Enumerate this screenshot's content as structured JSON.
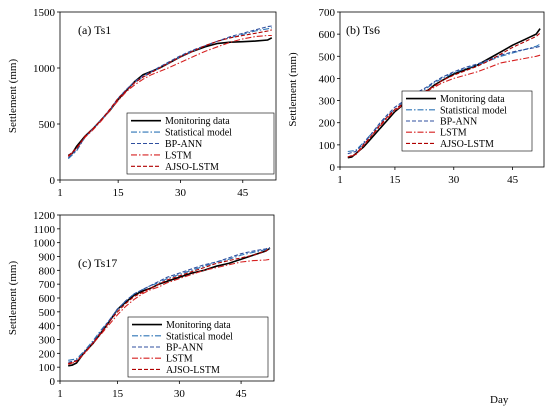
{
  "figure": {
    "xlabel": "Day"
  },
  "chart_data": [
    {
      "type": "line",
      "title": "(a) Ts1",
      "ylabel": "Settlement (mm)",
      "xlabel": "",
      "xlim": [
        1,
        53
      ],
      "ylim": [
        0,
        1500
      ],
      "xticks": [
        1,
        15,
        30,
        45
      ],
      "yticks": [
        0,
        500,
        1000,
        1500
      ],
      "legend_position": "bottom-right",
      "series": [
        {
          "name": "Monitoring data",
          "color": "#000000",
          "dash": "solid",
          "x": [
            3,
            4,
            5,
            7,
            9,
            11,
            13,
            15,
            17,
            19,
            21,
            23,
            25,
            27,
            30,
            33,
            36,
            39,
            42,
            45,
            48,
            51,
            52
          ],
          "y": [
            220,
            240,
            300,
            390,
            460,
            540,
            620,
            720,
            800,
            880,
            940,
            970,
            1000,
            1040,
            1100,
            1150,
            1190,
            1220,
            1230,
            1235,
            1240,
            1250,
            1270
          ]
        },
        {
          "name": "Statistical model",
          "color": "#2e75b6",
          "dash": "dashdot",
          "x": [
            3,
            5,
            7,
            9,
            11,
            13,
            15,
            17,
            19,
            21,
            23,
            25,
            27,
            30,
            33,
            36,
            39,
            42,
            45,
            48,
            51,
            52
          ],
          "y": [
            190,
            260,
            380,
            460,
            540,
            620,
            730,
            810,
            870,
            920,
            960,
            1000,
            1040,
            1100,
            1150,
            1200,
            1240,
            1270,
            1300,
            1330,
            1350,
            1360
          ]
        },
        {
          "name": "BP-ANN",
          "color": "#2f4f9f",
          "dash": "dashed",
          "x": [
            3,
            5,
            7,
            9,
            11,
            13,
            15,
            17,
            19,
            21,
            23,
            25,
            27,
            30,
            33,
            36,
            39,
            42,
            45,
            48,
            51,
            52
          ],
          "y": [
            200,
            270,
            380,
            460,
            540,
            630,
            730,
            810,
            880,
            930,
            970,
            1010,
            1050,
            1110,
            1160,
            1200,
            1240,
            1280,
            1310,
            1340,
            1370,
            1375
          ]
        },
        {
          "name": "LSTM",
          "color": "#d62020",
          "dash": "dashdot",
          "x": [
            3,
            5,
            7,
            9,
            11,
            13,
            15,
            17,
            19,
            21,
            23,
            25,
            27,
            30,
            33,
            36,
            39,
            42,
            45,
            48,
            51,
            52
          ],
          "y": [
            210,
            280,
            380,
            450,
            530,
            620,
            710,
            790,
            850,
            900,
            940,
            970,
            1000,
            1050,
            1100,
            1150,
            1190,
            1230,
            1260,
            1280,
            1290,
            1290
          ]
        },
        {
          "name": "AJSO-LSTM",
          "color": "#b00000",
          "dash": "dashed",
          "x": [
            3,
            5,
            7,
            9,
            11,
            13,
            15,
            17,
            19,
            21,
            23,
            25,
            27,
            30,
            33,
            36,
            39,
            42,
            45,
            48,
            51,
            52
          ],
          "y": [
            215,
            285,
            390,
            460,
            540,
            630,
            730,
            800,
            870,
            920,
            960,
            1000,
            1040,
            1100,
            1150,
            1200,
            1240,
            1270,
            1290,
            1310,
            1330,
            1340
          ]
        }
      ]
    },
    {
      "type": "line",
      "title": "(b) Ts6",
      "ylabel": "Settlement (mm)",
      "xlabel": "",
      "xlim": [
        1,
        53
      ],
      "ylim": [
        0,
        700
      ],
      "xticks": [
        1,
        15,
        30,
        45
      ],
      "yticks": [
        0,
        100,
        200,
        300,
        400,
        500,
        600,
        700
      ],
      "legend_position": "bottom-right",
      "series": [
        {
          "name": "Monitoring data",
          "color": "#000000",
          "dash": "solid",
          "x": [
            3,
            4,
            5,
            7,
            9,
            11,
            13,
            15,
            17,
            19,
            21,
            23,
            25,
            27,
            30,
            33,
            36,
            39,
            42,
            45,
            48,
            51,
            52
          ],
          "y": [
            42,
            45,
            60,
            90,
            130,
            170,
            210,
            250,
            280,
            300,
            320,
            340,
            370,
            390,
            420,
            440,
            460,
            490,
            520,
            550,
            575,
            600,
            625
          ]
        },
        {
          "name": "Statistical model",
          "color": "#2e75b6",
          "dash": "dashdot",
          "x": [
            3,
            5,
            7,
            9,
            11,
            13,
            15,
            17,
            19,
            21,
            23,
            25,
            27,
            30,
            33,
            36,
            39,
            42,
            45,
            48,
            51,
            52
          ],
          "y": [
            70,
            75,
            110,
            150,
            190,
            230,
            260,
            290,
            310,
            330,
            355,
            380,
            400,
            425,
            445,
            460,
            480,
            500,
            515,
            530,
            545,
            555
          ]
        },
        {
          "name": "BP-ANN",
          "color": "#2f4f9f",
          "dash": "dashed",
          "x": [
            3,
            5,
            7,
            9,
            11,
            13,
            15,
            17,
            19,
            21,
            23,
            25,
            27,
            30,
            33,
            36,
            39,
            42,
            45,
            48,
            51,
            52
          ],
          "y": [
            60,
            70,
            105,
            150,
            195,
            235,
            270,
            295,
            320,
            340,
            360,
            385,
            405,
            430,
            450,
            465,
            485,
            505,
            520,
            530,
            540,
            545
          ]
        },
        {
          "name": "LSTM",
          "color": "#d62020",
          "dash": "dashdot",
          "x": [
            3,
            5,
            7,
            9,
            11,
            13,
            15,
            17,
            19,
            21,
            23,
            25,
            27,
            30,
            33,
            36,
            39,
            42,
            45,
            48,
            51,
            52
          ],
          "y": [
            45,
            55,
            95,
            140,
            180,
            220,
            255,
            280,
            300,
            320,
            340,
            360,
            380,
            400,
            415,
            430,
            450,
            470,
            480,
            490,
            500,
            505
          ]
        },
        {
          "name": "AJSO-LSTM",
          "color": "#b00000",
          "dash": "dashed",
          "x": [
            3,
            5,
            7,
            9,
            11,
            13,
            15,
            17,
            19,
            21,
            23,
            25,
            27,
            30,
            33,
            36,
            39,
            42,
            45,
            48,
            51,
            52
          ],
          "y": [
            45,
            58,
            100,
            140,
            185,
            225,
            260,
            285,
            305,
            325,
            345,
            365,
            390,
            415,
            435,
            455,
            480,
            510,
            540,
            565,
            590,
            605
          ]
        }
      ]
    },
    {
      "type": "line",
      "title": "(c) Ts17",
      "ylabel": "Settlement (mm)",
      "xlabel": "",
      "xlim": [
        1,
        53
      ],
      "ylim": [
        0,
        1200
      ],
      "xticks": [
        1,
        15,
        30,
        45
      ],
      "yticks": [
        0,
        100,
        200,
        300,
        400,
        500,
        600,
        700,
        800,
        900,
        1000,
        1100,
        1200
      ],
      "legend_position": "bottom-right",
      "series": [
        {
          "name": "Monitoring data",
          "color": "#000000",
          "dash": "solid",
          "x": [
            3,
            4,
            5,
            6,
            7,
            9,
            11,
            13,
            15,
            17,
            19,
            21,
            23,
            25,
            27,
            30,
            33,
            36,
            39,
            42,
            45,
            48,
            51,
            52
          ],
          "y": [
            110,
            115,
            130,
            170,
            210,
            270,
            350,
            430,
            520,
            570,
            620,
            650,
            670,
            700,
            720,
            750,
            780,
            800,
            830,
            850,
            880,
            910,
            940,
            960
          ]
        },
        {
          "name": "Statistical model",
          "color": "#2e75b6",
          "dash": "dashdot",
          "x": [
            3,
            5,
            7,
            9,
            11,
            13,
            15,
            17,
            19,
            21,
            23,
            25,
            27,
            30,
            33,
            36,
            39,
            42,
            45,
            48,
            51,
            52
          ],
          "y": [
            150,
            160,
            220,
            290,
            370,
            440,
            520,
            580,
            630,
            660,
            690,
            710,
            740,
            770,
            800,
            830,
            860,
            880,
            910,
            930,
            950,
            960
          ]
        },
        {
          "name": "BP-ANN",
          "color": "#2f4f9f",
          "dash": "dashed",
          "x": [
            3,
            5,
            7,
            9,
            11,
            13,
            15,
            17,
            19,
            21,
            23,
            25,
            27,
            30,
            33,
            36,
            39,
            42,
            45,
            48,
            51,
            52
          ],
          "y": [
            135,
            150,
            210,
            280,
            360,
            440,
            520,
            580,
            630,
            660,
            690,
            720,
            750,
            780,
            810,
            840,
            860,
            890,
            920,
            940,
            955,
            965
          ]
        },
        {
          "name": "LSTM",
          "color": "#d62020",
          "dash": "dashdot",
          "x": [
            3,
            5,
            7,
            9,
            11,
            13,
            15,
            17,
            19,
            21,
            23,
            25,
            27,
            30,
            33,
            36,
            39,
            42,
            45,
            48,
            51,
            52
          ],
          "y": [
            120,
            140,
            200,
            270,
            340,
            410,
            480,
            540,
            590,
            630,
            660,
            680,
            710,
            740,
            770,
            800,
            820,
            840,
            860,
            870,
            875,
            880
          ]
        },
        {
          "name": "AJSO-LSTM",
          "color": "#b00000",
          "dash": "dashed",
          "x": [
            3,
            5,
            7,
            9,
            11,
            13,
            15,
            17,
            19,
            21,
            23,
            25,
            27,
            30,
            33,
            36,
            39,
            42,
            45,
            48,
            51,
            52
          ],
          "y": [
            125,
            145,
            205,
            275,
            350,
            430,
            500,
            560,
            610,
            640,
            670,
            700,
            730,
            760,
            790,
            820,
            850,
            870,
            890,
            910,
            940,
            960
          ]
        }
      ]
    }
  ]
}
